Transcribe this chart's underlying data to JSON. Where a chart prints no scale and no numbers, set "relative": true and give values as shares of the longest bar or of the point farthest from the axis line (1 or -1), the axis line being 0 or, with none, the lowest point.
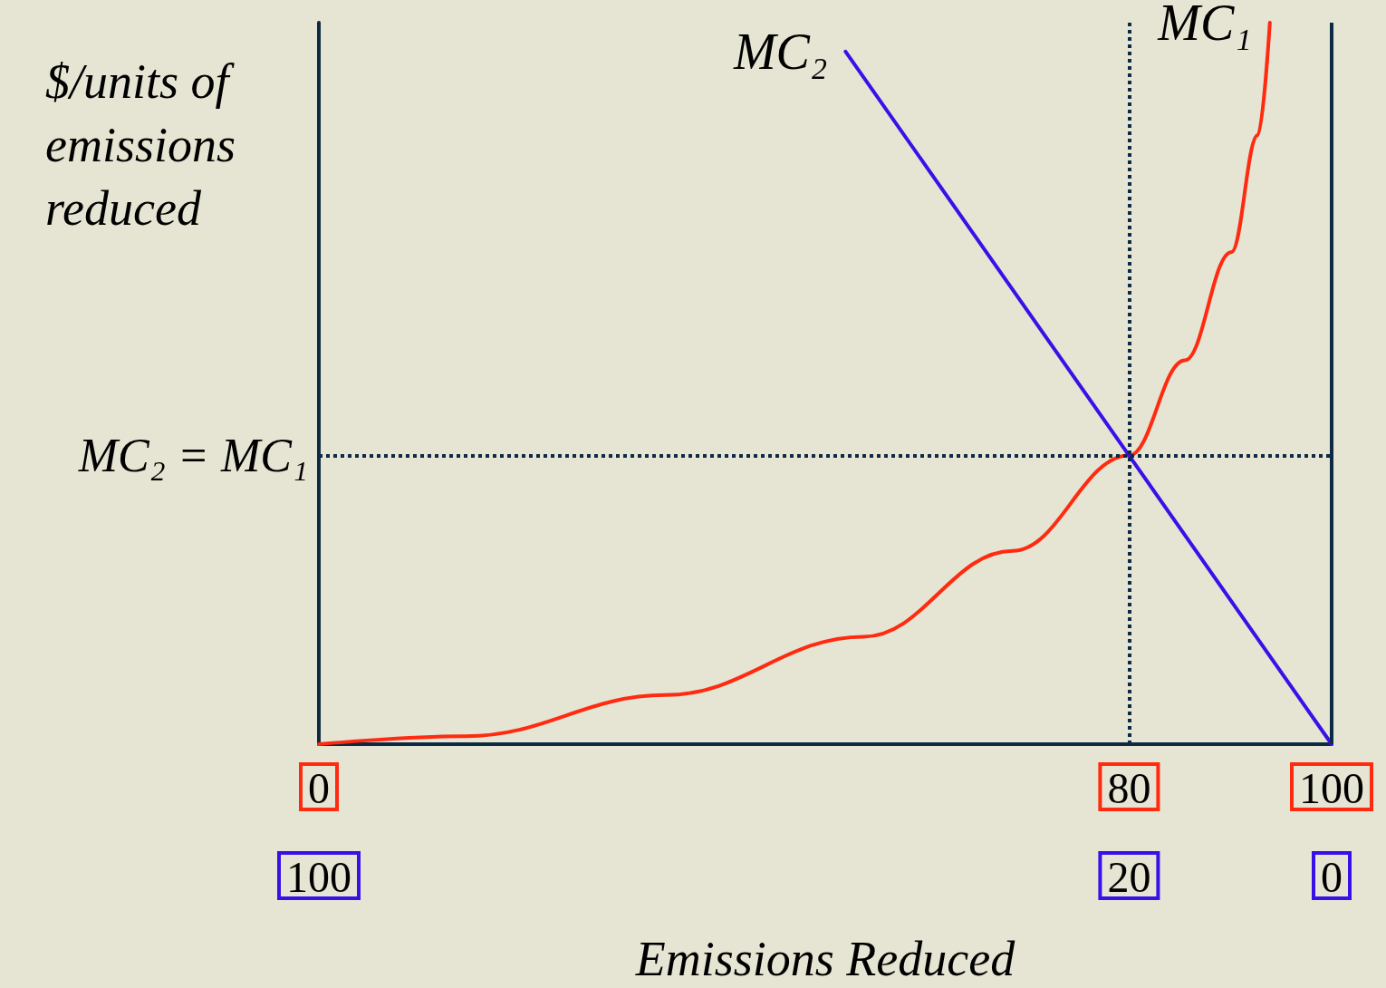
{
  "chart_data": {
    "type": "line",
    "relative": true,
    "xlabel": "Emissions Reduced",
    "ylabel": "$/units of emissions reduced",
    "xlim": [
      0,
      100
    ],
    "xticks": [
      0,
      80,
      100
    ],
    "x2lim": [
      100,
      0
    ],
    "x2ticks": [
      100,
      20,
      0
    ],
    "series": [
      {
        "name": "MC₁",
        "color": "#ff2a10",
        "x": [
          0,
          14.5,
          34.2,
          53.8,
          68.5,
          80,
          85.5,
          90.1,
          92.7,
          93.9
        ],
        "values": [
          0,
          0.011,
          0.068,
          0.149,
          0.268,
          0.4,
          0.532,
          0.682,
          0.844,
          1
        ]
      },
      {
        "name": "MC₂",
        "color": "#3a10e8",
        "axis": "x2",
        "x": [
          48,
          0
        ],
        "values": [
          0.96,
          0
        ]
      }
    ],
    "ref_lines": [
      {
        "axis": "y",
        "value": 0.4,
        "label": "MC₂ = MC₁",
        "color": "#0d2a45",
        "line_style": "dotted"
      },
      {
        "axis": "x",
        "value": 80,
        "label": null,
        "color": "#0d2a45",
        "line_style": "dotted"
      },
      {
        "axis": "x",
        "value": 100,
        "label": null,
        "color": "#0d2a45",
        "line_style": "solid"
      }
    ],
    "grid": false,
    "legend": false,
    "marker": "none",
    "line_style": "solid"
  }
}
